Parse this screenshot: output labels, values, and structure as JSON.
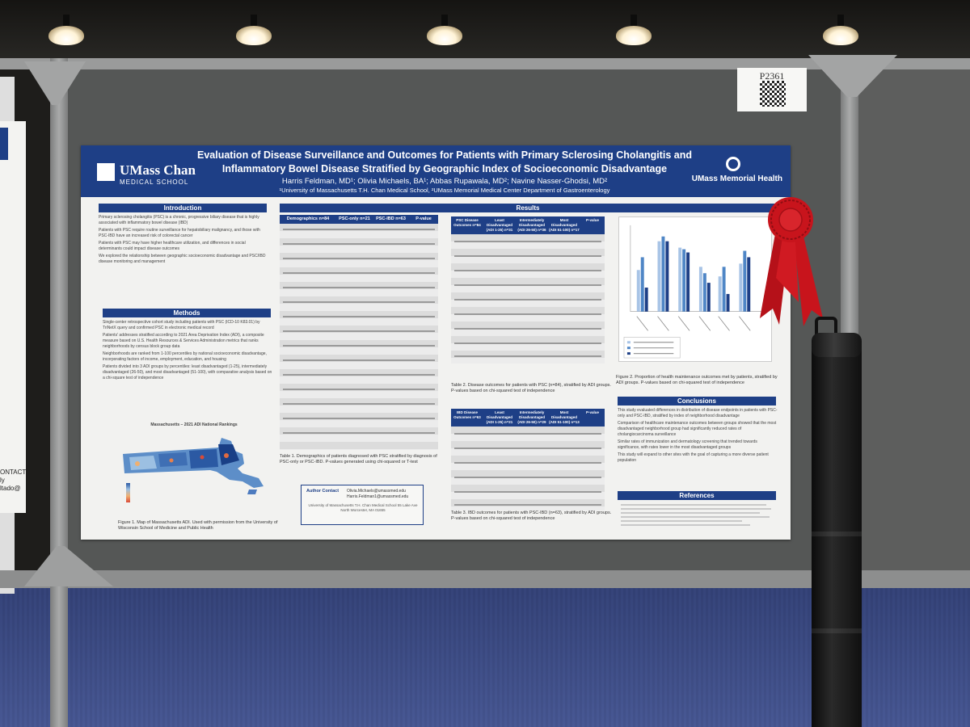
{
  "booth": {
    "qr_number": "P2361",
    "left_poster_fragment": [
      "ONTACT",
      "ly",
      "ltado@"
    ]
  },
  "poster": {
    "logo_left_line1": "UMass Chan",
    "logo_left_line2": "MEDICAL SCHOOL",
    "logo_right": "UMass Memorial Health",
    "title_line1": "Evaluation of Disease Surveillance and Outcomes for Patients with Primary Sclerosing Cholangitis and",
    "title_line2": "Inflammatory Bowel Disease Stratified by Geographic Index of Socioeconomic Disadvantage",
    "authors": "Harris Feldman, MD¹; Olivia Michaels, BA¹; Abbas Rupawala, MD²; Navine Nasser-Ghodsi, MD²",
    "affiliation": "¹University of Massachusetts T.H. Chan Medical School, ²UMass Memorial Medical Center Department of Gastroenterology",
    "sections": {
      "introduction": "Introduction",
      "methods": "Methods",
      "results": "Results",
      "conclusions": "Conclusions",
      "references": "References"
    },
    "introduction_bullets": [
      "Primary sclerosing cholangitis (PSC) is a chronic, progressive biliary disease that is highly associated with inflammatory bowel disease (IBD)",
      "Patients with PSC require routine surveillance for hepatobiliary malignancy, and those with PSC-IBD have an increased risk of colorectal cancer",
      "Patients with PSC may have higher healthcare utilization, and differences in social determinants could impact disease outcomes",
      "We explored the relationship between geographic socioeconomic disadvantage and PSC/IBD disease monitoring and management"
    ],
    "methods_bullets": [
      "Single-center retrospective cohort study including patients with PSC (ICD-10 K83.01) by TriNetX query and confirmed PSC in electronic medical record",
      "Patients' addresses stratified according to 2021 Area Deprivation Index (ADI), a composite measure based on U.S. Health Resources & Services Administration metrics that ranks neighborhoods by census block group data",
      "Neighborhoods are ranked from 1-100 percentiles by national socioeconomic disadvantage, incorporating factors of income, employment, education, and housing",
      "Patients divided into 3 ADI groups by percentiles: least disadvantaged (1-25), intermediately disadvantaged (26-50), and most disadvantaged (51-100), with comparative analysis based on a chi-square test of independence"
    ],
    "map_title": "Massachusetts – 2021 ADI National Rankings",
    "figure1_caption": "Figure 1. Map of Massachusetts ADI. Used with permission from the University of Wisconsin School of Medicine and Public Health",
    "table1_headers": [
      "Demographics n=84",
      "PSC-only n=21",
      "PSC-IBD n=63",
      "P-value"
    ],
    "table1_caption": "Table 1. Demographics of patients diagnosed with PSC stratified by diagnosis of PSC-only or PSC-IBD. P-values generated using chi-squared or T-test",
    "table2_headers": [
      "PSC Disease Outcomes n=84",
      "Least Disadvantaged (ADI 1-25) n=31",
      "Intermediately Disadvantaged (ADI 26-50) n=36",
      "Most Disadvantaged (ADI 51-100) n=17",
      "P-value"
    ],
    "table2_caption": "Table 2. Disease outcomes for patients with PSC (n=84), stratified by ADI groups. P-values based on chi-squared test of independence",
    "table3_headers": [
      "IBD Disease Outcomes n=63",
      "Least Disadvantaged (ADI 1-25) n=21",
      "Intermediately Disadvantaged (ADI 26-50) n=29",
      "Most Disadvantaged (ADI 51-100) n=13",
      "P-value"
    ],
    "table3_caption": "Table 3. IBD outcomes for patients with PSC-IBD (n=63), stratified by ADI groups. P-values based on chi-squared test of independence",
    "figure2_caption": "Figure 2. Proportion of health maintenance outcomes met by patients, stratified by ADI groups. P-values based on chi-squared test of independence",
    "conclusions_bullets": [
      "This study evaluated differences in distribution of disease endpoints in patients with PSC-only and PSC-IBD, stratified by index of neighborhood disadvantage",
      "Comparison of healthcare maintenance outcomes between groups showed that the most disadvantaged neighborhood group had significantly reduced rates of cholangiocarcinoma surveillance",
      "Similar rates of immunization and dermatology screening that trended towards significance, with rates lower in the most disadvantaged groups",
      "This study will expand to other sites with the goal of capturing a more diverse patient population"
    ],
    "contact_label": "Author Contact",
    "contact_emails": [
      "Olivia.Michaels@umassmed.edu",
      "Harris.Feldman1@umassmed.edu"
    ],
    "contact_address": "University of Massachusetts T.H. Chan Medical School 55 Lake Ave North Worcester, MA 01655"
  },
  "colors": {
    "poster_blue": "#1e3f86",
    "ribbon_red": "#c8141c",
    "board_gray": "#555756",
    "carpet_blue": "#3c4c8a"
  }
}
